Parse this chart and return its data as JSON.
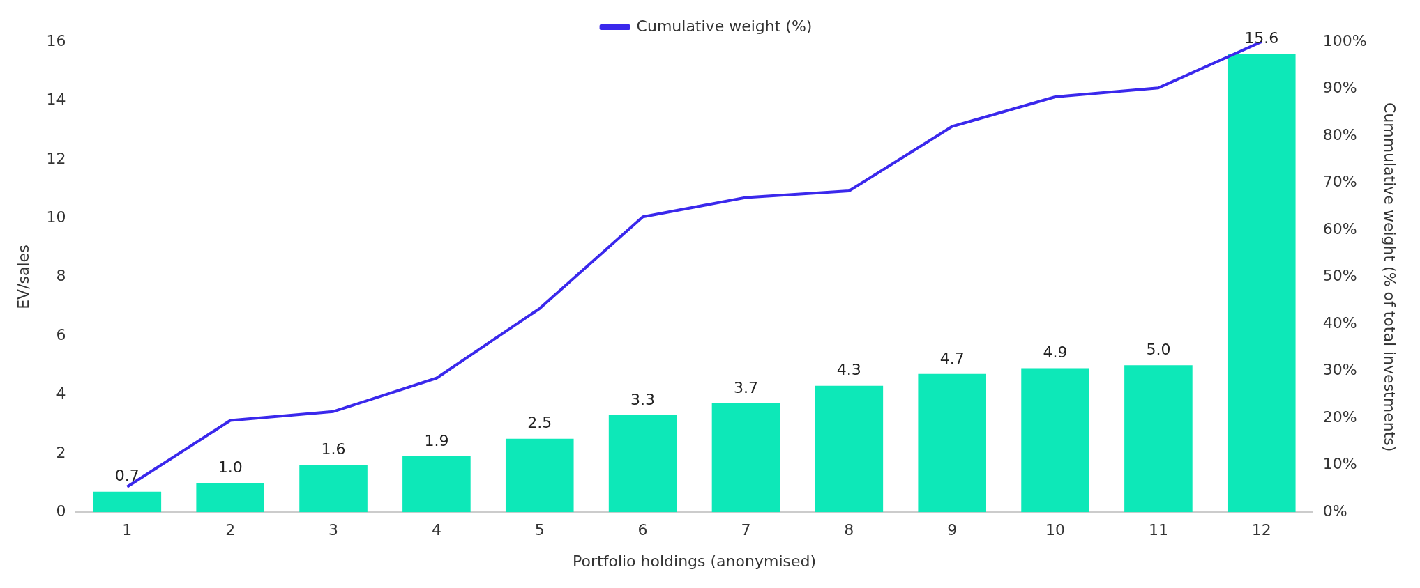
{
  "chart_data": {
    "type": "bar",
    "xlabel": "Portfolio holdings (anonymised)",
    "ylabel": "EV/sales",
    "y2label": "Cummulative weight (% of total investments)",
    "categories": [
      "1",
      "2",
      "3",
      "4",
      "5",
      "6",
      "7",
      "8",
      "9",
      "10",
      "11",
      "12"
    ],
    "series": [
      {
        "color": "#0de8b8",
        "values": [
          0.7,
          1.0,
          1.6,
          1.9,
          2.5,
          3.3,
          3.7,
          4.3,
          4.7,
          4.9,
          5.0,
          15.6
        ],
        "value_labels": [
          "0.7",
          "1.0",
          "1.6",
          "1.9",
          "2.5",
          "3.3",
          "3.7",
          "4.3",
          "4.7",
          "4.9",
          "5.0",
          "15.6"
        ]
      },
      {
        "type": "line",
        "name": "Cumulative weight (%)",
        "axis": "y2",
        "color": "#3a28ec",
        "values": [
          5.4,
          19.5,
          21.4,
          28.5,
          43.3,
          62.8,
          66.9,
          68.3,
          82.0,
          88.3,
          90.2,
          100
        ]
      }
    ],
    "ylim": [
      0,
      16
    ],
    "yticks": [
      0,
      2,
      4,
      6,
      8,
      10,
      12,
      14,
      16
    ],
    "y2lim": [
      0,
      100
    ],
    "y2ticks": [
      {
        "value": 0,
        "label": "0%"
      },
      {
        "value": 10,
        "label": "10%"
      },
      {
        "value": 20,
        "label": "20%"
      },
      {
        "value": 30,
        "label": "30%"
      },
      {
        "value": 40,
        "label": "40%"
      },
      {
        "value": 50,
        "label": "50%"
      },
      {
        "value": 60,
        "label": "60%"
      },
      {
        "value": 70,
        "label": "70%"
      },
      {
        "value": 80,
        "label": "80%"
      },
      {
        "value": 90,
        "label": "90%"
      },
      {
        "value": 100,
        "label": "100%"
      }
    ],
    "grid": false,
    "legend": "top",
    "marker": "none",
    "line_style": "solid"
  }
}
